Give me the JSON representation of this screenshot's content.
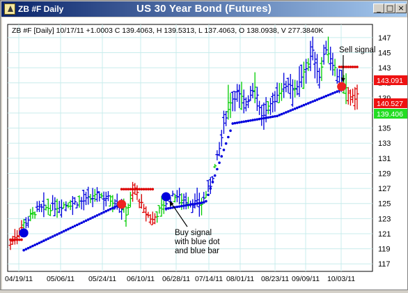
{
  "window": {
    "title": "ZB #F Daily",
    "chart_title": "US 30 Year Bond (Futures)",
    "btn_minimize": "_",
    "btn_maximize": "□",
    "btn_close": "×"
  },
  "colors": {
    "up": "#0000dd",
    "neutral": "#00cc00",
    "down": "#dd0000",
    "grid": "#c8ecec",
    "titlebar": "#0a246a"
  },
  "chart_data": {
    "type": "ohlc",
    "title": "US 30 Year Bond (Futures)",
    "info_line": "ZB #F [Daily] 10/17/11  +1.0003 C 139.4063, H 139.5313, L 137.4063, O 138.0938, V 277.3840K",
    "ylim": [
      116,
      148
    ],
    "y_ticks": [
      117,
      119,
      121,
      123,
      125,
      127,
      129,
      131,
      133,
      135,
      137,
      139,
      141,
      143,
      145,
      147
    ],
    "x_ticks": [
      "04/19/11",
      "05/06/11",
      "05/24/11",
      "06/10/11",
      "06/28/11",
      "07/14/11",
      "08/01/11",
      "08/23/11",
      "09/09/11",
      "10/03/11"
    ],
    "price_labels": [
      {
        "value": "143.091",
        "color": "red"
      },
      {
        "value": "140.527",
        "color": "red"
      },
      {
        "value": "139.406",
        "color": "green"
      }
    ],
    "annotations": {
      "sell": "Sell signal",
      "buy": [
        "Buy signal",
        "with blue dot",
        "and blue bar"
      ]
    },
    "grid": true
  }
}
